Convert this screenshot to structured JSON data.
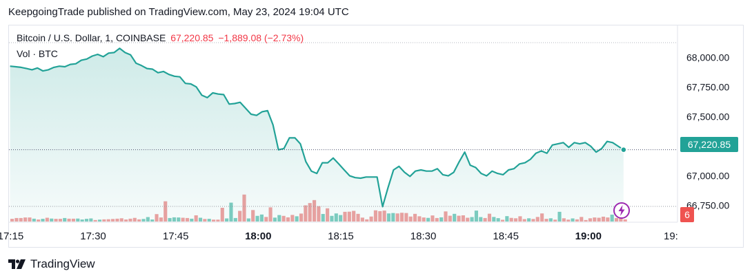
{
  "header": {
    "published": "KeepgoingTrade published on TradingView.com, May 23, 2024 19:04 UTC"
  },
  "legend": {
    "symbol": "Bitcoin / U.S. Dollar, 1, COINBASE",
    "last": "67,220.85",
    "change": "−1,889.08 (−2.73%)",
    "volume_label": "Vol · BTC"
  },
  "price_badge": "67,220.85",
  "volume_badge": "6",
  "footer": {
    "brand": "TradingView"
  },
  "colors": {
    "line": "#22a297",
    "fill": "#22a29722",
    "up": "#7fcdc1",
    "down": "#f0a1a1",
    "badge": "#22a297",
    "down_badge": "#ef5350"
  },
  "chart_data": {
    "type": "line",
    "y_ticks": [
      "68,000.00",
      "67,750.00",
      "67,500.00",
      "67,250.00",
      "67,000.00",
      "66,750.00"
    ],
    "y_tick_values": [
      68000,
      67750,
      67500,
      67250,
      67000,
      66750
    ],
    "ylim": [
      66690,
      68135
    ],
    "x_ticks": [
      {
        "label": "17:15",
        "minute": 0,
        "bold": false
      },
      {
        "label": "17:30",
        "minute": 15,
        "bold": false
      },
      {
        "label": "17:45",
        "minute": 30,
        "bold": false
      },
      {
        "label": "18:00",
        "minute": 45,
        "bold": true
      },
      {
        "label": "18:15",
        "minute": 60,
        "bold": false
      },
      {
        "label": "18:30",
        "minute": 75,
        "bold": false
      },
      {
        "label": "18:45",
        "minute": 90,
        "bold": false
      },
      {
        "label": "19:00",
        "minute": 105,
        "bold": true
      },
      {
        "label": "19:",
        "minute": 120,
        "bold": false
      }
    ],
    "x_start": -0.3,
    "x_end": 121.2,
    "price_x_start": -0.1,
    "price_x_end": 111.4,
    "price": [
      67925,
      67920,
      67915,
      67905,
      67895,
      67910,
      67885,
      67895,
      67915,
      67925,
      67920,
      67940,
      67945,
      67975,
      67985,
      68010,
      68025,
      68005,
      68035,
      68040,
      68075,
      68040,
      68020,
      67950,
      67930,
      67905,
      67900,
      67870,
      67880,
      67855,
      67840,
      67835,
      67780,
      67775,
      67750,
      67680,
      67660,
      67700,
      67690,
      67685,
      67605,
      67610,
      67620,
      67570,
      67520,
      67510,
      67540,
      67550,
      67430,
      67220,
      67230,
      67320,
      67320,
      67270,
      67120,
      67040,
      67020,
      67110,
      67110,
      67150,
      67100,
      67050,
      67000,
      66985,
      66980,
      66990,
      66990,
      66990,
      66740,
      66900,
      67050,
      67080,
      67030,
      66995,
      67040,
      67050,
      67040,
      67040,
      67060,
      67010,
      67000,
      67030,
      67120,
      67200,
      67090,
      67070,
      67020,
      67000,
      67040,
      67020,
      67010,
      67050,
      67060,
      67100,
      67110,
      67140,
      67190,
      67210,
      67190,
      67260,
      67270,
      67280,
      67240,
      67280,
      67270,
      67280,
      67250,
      67200,
      67230,
      67290,
      67280,
      67250,
      67220
    ],
    "volume_max": 25,
    "volume": [
      [
        2,
        "d"
      ],
      [
        2.6,
        "d"
      ],
      [
        2.6,
        "d"
      ],
      [
        3,
        "d"
      ],
      [
        3,
        "d"
      ],
      [
        2.1,
        "u"
      ],
      [
        1.5,
        "d"
      ],
      [
        2,
        "u"
      ],
      [
        2.8,
        "d"
      ],
      [
        2.2,
        "u"
      ],
      [
        2,
        "d"
      ],
      [
        2,
        "d"
      ],
      [
        2.6,
        "u"
      ],
      [
        2.1,
        "d"
      ],
      [
        2.1,
        "d"
      ],
      [
        2.2,
        "u"
      ],
      [
        1.5,
        "u"
      ],
      [
        2,
        "u"
      ],
      [
        2.3,
        "u"
      ],
      [
        1.1,
        "d"
      ],
      [
        1.4,
        "u"
      ],
      [
        1.6,
        "d"
      ],
      [
        1.7,
        "d"
      ],
      [
        1.9,
        "d"
      ],
      [
        2.1,
        "d"
      ],
      [
        2.4,
        "d"
      ],
      [
        1.5,
        "d"
      ],
      [
        2.1,
        "d"
      ],
      [
        2.7,
        "d"
      ],
      [
        1.6,
        "d"
      ],
      [
        1.9,
        "u"
      ],
      [
        3.3,
        "u"
      ],
      [
        1.5,
        "u"
      ],
      [
        5.5,
        "d"
      ],
      [
        3,
        "d"
      ],
      [
        15,
        "d"
      ],
      [
        2.6,
        "u"
      ],
      [
        3.1,
        "u"
      ],
      [
        3,
        "u"
      ],
      [
        2.8,
        "d"
      ],
      [
        2.6,
        "d"
      ],
      [
        2.1,
        "u"
      ],
      [
        4.6,
        "d"
      ],
      [
        2.8,
        "u"
      ],
      [
        1.9,
        "d"
      ],
      [
        2,
        "u"
      ],
      [
        1.4,
        "d"
      ],
      [
        1.4,
        "d"
      ],
      [
        10.2,
        "d"
      ],
      [
        2.3,
        "u"
      ],
      [
        14,
        "u"
      ],
      [
        2.6,
        "u"
      ],
      [
        7.9,
        "d"
      ],
      [
        20,
        "d"
      ],
      [
        2.3,
        "u"
      ],
      [
        8.5,
        "d"
      ],
      [
        4.2,
        "u"
      ],
      [
        5.2,
        "u"
      ],
      [
        3.4,
        "d"
      ],
      [
        10.5,
        "d"
      ],
      [
        2.9,
        "u"
      ],
      [
        4.8,
        "u"
      ],
      [
        4.2,
        "d"
      ],
      [
        3.1,
        "d"
      ],
      [
        4.9,
        "d"
      ],
      [
        3.9,
        "u"
      ],
      [
        5.9,
        "d"
      ],
      [
        12,
        "d"
      ],
      [
        13.7,
        "d"
      ],
      [
        15.9,
        "d"
      ],
      [
        11.4,
        "d"
      ],
      [
        5.6,
        "u"
      ],
      [
        9.8,
        "d"
      ],
      [
        4.2,
        "u"
      ],
      [
        6,
        "u"
      ],
      [
        4.8,
        "u"
      ],
      [
        7.2,
        "d"
      ],
      [
        7.3,
        "d"
      ],
      [
        7.9,
        "d"
      ],
      [
        5.7,
        "d"
      ],
      [
        2.9,
        "d"
      ],
      [
        1.6,
        "d"
      ],
      [
        3.7,
        "d"
      ],
      [
        8.3,
        "d"
      ],
      [
        7.7,
        "d"
      ],
      [
        8.1,
        "d"
      ],
      [
        6,
        "u"
      ],
      [
        6.3,
        "u"
      ],
      [
        6,
        "d"
      ],
      [
        6.5,
        "d"
      ],
      [
        6.3,
        "d"
      ],
      [
        3.7,
        "d"
      ],
      [
        5.7,
        "d"
      ],
      [
        3.9,
        "d"
      ],
      [
        3,
        "d"
      ],
      [
        2.7,
        "u"
      ],
      [
        4.5,
        "d"
      ],
      [
        2.6,
        "d"
      ],
      [
        3.1,
        "u"
      ],
      [
        7.5,
        "d"
      ],
      [
        4.3,
        "d"
      ],
      [
        5.7,
        "u"
      ],
      [
        4.3,
        "d"
      ],
      [
        4.6,
        "d"
      ],
      [
        2.8,
        "d"
      ],
      [
        3.3,
        "u"
      ],
      [
        8.1,
        "u"
      ],
      [
        3.3,
        "u"
      ],
      [
        2.6,
        "d"
      ],
      [
        5.8,
        "d"
      ],
      [
        3.4,
        "u"
      ],
      [
        2.5,
        "u"
      ],
      [
        1.3,
        "d"
      ],
      [
        4,
        "u"
      ],
      [
        2.7,
        "d"
      ],
      [
        2.4,
        "d"
      ],
      [
        3.9,
        "d"
      ],
      [
        1.8,
        "d"
      ],
      [
        2.4,
        "u"
      ],
      [
        1.9,
        "d"
      ],
      [
        3.4,
        "d"
      ],
      [
        6,
        "d"
      ],
      [
        2,
        "d"
      ],
      [
        2.4,
        "u"
      ],
      [
        1.4,
        "d"
      ],
      [
        7.2,
        "u"
      ],
      [
        2.4,
        "d"
      ],
      [
        1.4,
        "d"
      ],
      [
        2.3,
        "u"
      ],
      [
        1.6,
        "d"
      ],
      [
        3.4,
        "d"
      ],
      [
        1.1,
        "d"
      ],
      [
        2.4,
        "d"
      ],
      [
        3,
        "d"
      ],
      [
        2.8,
        "d"
      ],
      [
        3.6,
        "d"
      ],
      [
        3,
        "d"
      ],
      [
        5.1,
        "u"
      ],
      [
        2.6,
        "d"
      ],
      [
        4.9,
        "d"
      ],
      [
        1.6,
        "d"
      ]
    ]
  }
}
